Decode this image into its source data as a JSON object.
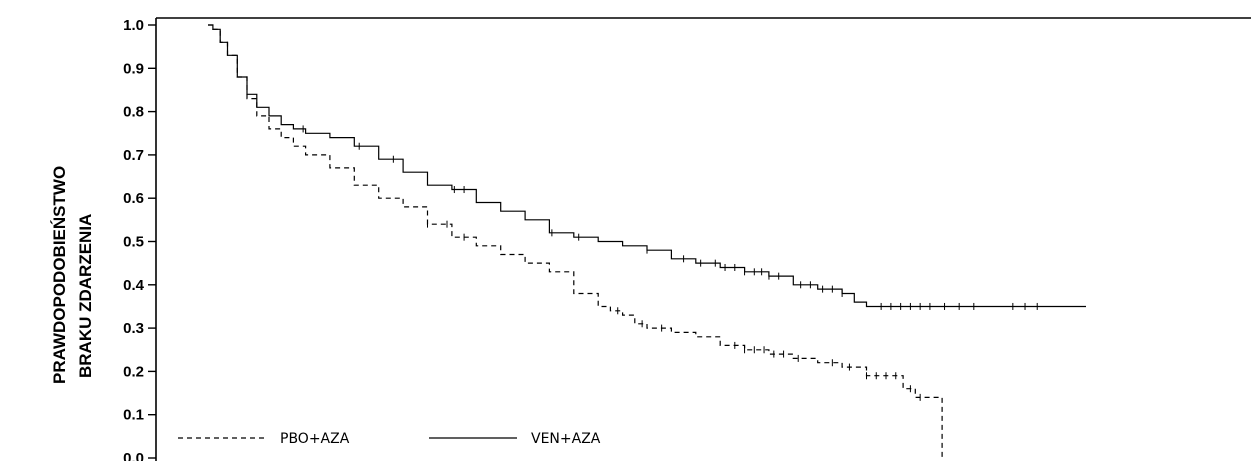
{
  "chart_data": {
    "type": "line",
    "title": "",
    "xlabel": "",
    "ylabel_lines": [
      "PRAWDOPODOBIEŃSTWO",
      "BRAKU ZDARZENIA"
    ],
    "ylim": [
      0,
      1.0
    ],
    "xlim": [
      0,
      36
    ],
    "yticks": [
      "0.0",
      "0.1",
      "0.2",
      "0.3",
      "0.4",
      "0.5",
      "0.6",
      "0.7",
      "0.8",
      "0.9",
      "1.0"
    ],
    "grid": false,
    "legend_placement": "bottom-left",
    "series": [
      {
        "name": "PBO+AZA",
        "style": "dashed",
        "color": "#000000",
        "x": [
          0,
          0.2,
          0.5,
          0.8,
          1.2,
          1.6,
          2.0,
          2.5,
          3.0,
          3.5,
          4.0,
          5.0,
          6.0,
          7.0,
          8.0,
          9.0,
          10.0,
          11.0,
          12.0,
          13.0,
          14.0,
          15.0,
          16.0,
          16.5,
          17.0,
          17.5,
          18.0,
          19.0,
          20.0,
          21.0,
          22.0,
          23.0,
          24.0,
          25.0,
          26.0,
          27.0,
          28.0,
          28.5,
          29.0,
          29.8,
          30.1,
          30.1
        ],
        "y": [
          1.0,
          0.99,
          0.96,
          0.93,
          0.88,
          0.83,
          0.79,
          0.76,
          0.74,
          0.72,
          0.7,
          0.67,
          0.63,
          0.6,
          0.58,
          0.54,
          0.51,
          0.49,
          0.47,
          0.45,
          0.43,
          0.38,
          0.35,
          0.34,
          0.33,
          0.31,
          0.3,
          0.29,
          0.28,
          0.26,
          0.25,
          0.24,
          0.23,
          0.22,
          0.21,
          0.19,
          0.19,
          0.16,
          0.14,
          0.14,
          0.14,
          0.0
        ],
        "censor_x": [
          9.0,
          9.8,
          10.5,
          16.8,
          17.8,
          18.6,
          21.6,
          22.0,
          22.4,
          22.8,
          23.2,
          23.6,
          24.2,
          25.6,
          26.3,
          27.0,
          27.4,
          27.8,
          28.2,
          28.8,
          29.2
        ]
      },
      {
        "name": "VEN+AZA",
        "style": "solid",
        "color": "#000000",
        "x": [
          0,
          0.2,
          0.5,
          0.8,
          1.2,
          1.6,
          2.0,
          2.5,
          3.0,
          3.5,
          4.0,
          5.0,
          6.0,
          7.0,
          8.0,
          9.0,
          10.0,
          11.0,
          12.0,
          13.0,
          14.0,
          15.0,
          16.0,
          17.0,
          18.0,
          19.0,
          20.0,
          21.0,
          22.0,
          23.0,
          24.0,
          25.0,
          25.7,
          26.0,
          26.5,
          27.0,
          27.5,
          28.0,
          29.0,
          30.0,
          31.0,
          32.0,
          33.0,
          34.0,
          35.0,
          36.0
        ],
        "y": [
          1.0,
          0.99,
          0.96,
          0.93,
          0.88,
          0.84,
          0.81,
          0.79,
          0.77,
          0.76,
          0.75,
          0.74,
          0.72,
          0.69,
          0.66,
          0.63,
          0.62,
          0.59,
          0.57,
          0.55,
          0.52,
          0.51,
          0.5,
          0.49,
          0.48,
          0.46,
          0.45,
          0.44,
          0.43,
          0.42,
          0.4,
          0.39,
          0.39,
          0.38,
          0.36,
          0.35,
          0.35,
          0.35,
          0.35,
          0.35,
          0.35,
          0.35,
          0.35,
          0.35,
          0.35,
          0.35
        ],
        "censor_x": [
          3.9,
          6.2,
          7.6,
          10.1,
          10.5,
          14.1,
          15.2,
          18.0,
          19.5,
          20.2,
          20.8,
          21.2,
          21.6,
          22.0,
          22.4,
          22.7,
          23.0,
          23.4,
          24.3,
          24.7,
          25.2,
          25.6,
          26.0,
          27.6,
          28.0,
          28.4,
          28.8,
          29.2,
          29.6,
          30.2,
          30.8,
          31.4,
          33.0,
          33.5,
          34.0
        ]
      }
    ]
  }
}
